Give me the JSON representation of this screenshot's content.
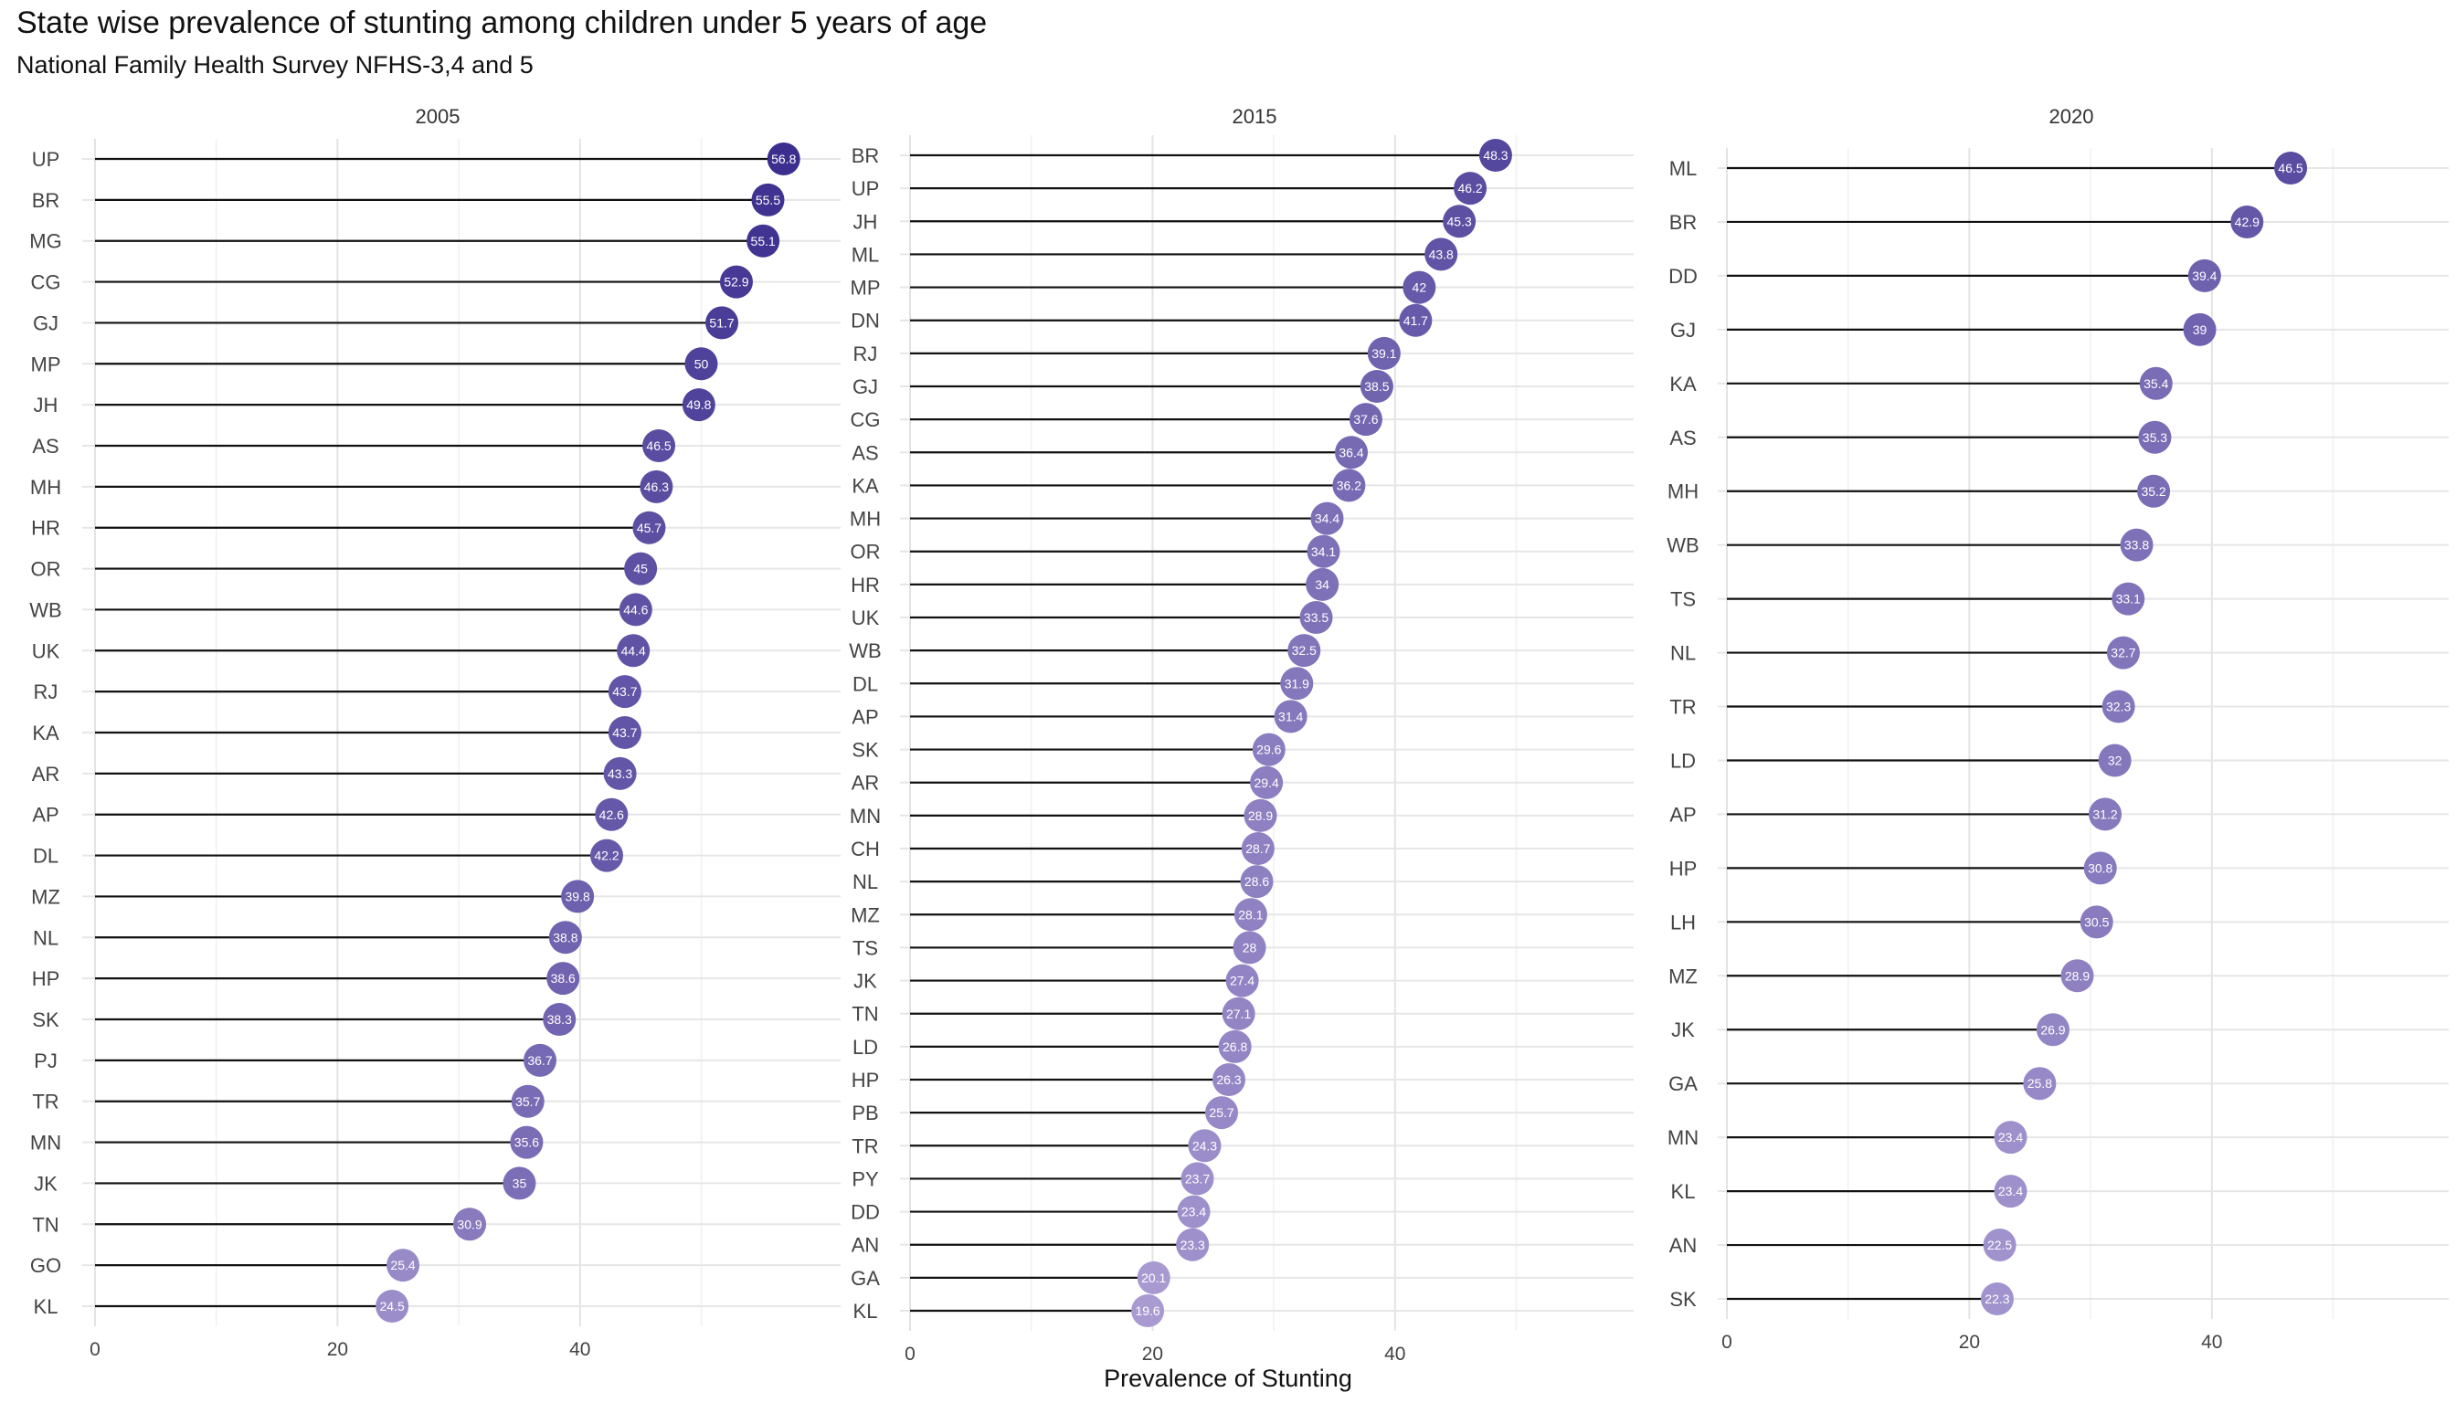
{
  "title": "State wise prevalence of stunting among children under 5 years of age",
  "subtitle": "National Family Health Survey NFHS-3,4 and 5",
  "chart_data": {
    "type": "lollipop",
    "xlabel": "Prevalence of Stunting",
    "ylabel": "",
    "xlim": [
      0,
      57
    ],
    "xticks": [
      0,
      20,
      40
    ],
    "grid": true,
    "color_low": "#a99bd2",
    "color_high": "#3b2e8e",
    "stem_color": "#111111",
    "panels": [
      {
        "facet": "2005",
        "categories": [
          "UP",
          "BR",
          "MG",
          "CG",
          "GJ",
          "MP",
          "JH",
          "AS",
          "MH",
          "HR",
          "OR",
          "WB",
          "UK",
          "RJ",
          "KA",
          "AR",
          "AP",
          "DL",
          "MZ",
          "NL",
          "HP",
          "SK",
          "PJ",
          "TR",
          "MN",
          "JK",
          "TN",
          "GO",
          "KL"
        ],
        "values": [
          56.8,
          55.5,
          55.1,
          52.9,
          51.7,
          50,
          49.8,
          46.5,
          46.3,
          45.7,
          45,
          44.6,
          44.4,
          43.7,
          43.7,
          43.3,
          42.6,
          42.2,
          39.8,
          38.8,
          38.6,
          38.3,
          36.7,
          35.7,
          35.6,
          35,
          30.9,
          25.4,
          24.5
        ],
        "labels": [
          "56.8",
          "55.5",
          "55.1",
          "52.9",
          "51.7",
          "50",
          "49.8",
          "46.5",
          "46.3",
          "45.7",
          "45",
          "44.6",
          "44.4",
          "43.7",
          "43.7",
          "43.3",
          "42.6",
          "42.2",
          "39.8",
          "38.8",
          "38.6",
          "38.3",
          "36.7",
          "35.7",
          "35.6",
          "35",
          "30.9",
          "25.4",
          "24.5"
        ]
      },
      {
        "facet": "2015",
        "categories": [
          "BR",
          "UP",
          "JH",
          "ML",
          "MP",
          "DN",
          "RJ",
          "GJ",
          "CG",
          "AS",
          "KA",
          "MH",
          "OR",
          "HR",
          "UK",
          "WB",
          "DL",
          "AP",
          "SK",
          "AR",
          "MN",
          "CH",
          "NL",
          "MZ",
          "TS",
          "JK",
          "TN",
          "LD",
          "HP",
          "PB",
          "TR",
          "PY",
          "DD",
          "AN",
          "GA",
          "KL"
        ],
        "values": [
          48.3,
          46.2,
          45.3,
          43.8,
          42,
          41.7,
          39.1,
          38.5,
          37.6,
          36.4,
          36.2,
          34.4,
          34.1,
          34,
          33.5,
          32.5,
          31.9,
          31.4,
          29.6,
          29.4,
          28.9,
          28.7,
          28.6,
          28.1,
          28,
          27.4,
          27.1,
          26.8,
          26.3,
          25.7,
          24.3,
          23.7,
          23.4,
          23.3,
          20.1,
          19.6
        ],
        "labels": [
          "48.3",
          "46.2",
          "45.3",
          "43.8",
          "42",
          "41.7",
          "39.1",
          "38.5",
          "37.6",
          "36.4",
          "36.2",
          "34.4",
          "34.1",
          "34",
          "33.5",
          "32.5",
          "31.9",
          "31.4",
          "29.6",
          "29.4",
          "28.9",
          "28.7",
          "28.6",
          "28.1",
          "28",
          "27.4",
          "27.1",
          "26.8",
          "26.3",
          "25.7",
          "24.3",
          "23.7",
          "23.4",
          "23.3",
          "20.1",
          "19.6"
        ]
      },
      {
        "facet": "2020",
        "categories": [
          "ML",
          "BR",
          "DD",
          "GJ",
          "KA",
          "AS",
          "MH",
          "WB",
          "TS",
          "NL",
          "TR",
          "LD",
          "AP",
          "HP",
          "LH",
          "MZ",
          "JK",
          "GA",
          "MN",
          "KL",
          "AN",
          "SK"
        ],
        "values": [
          46.5,
          42.9,
          39.4,
          39,
          35.4,
          35.3,
          35.2,
          33.8,
          33.1,
          32.7,
          32.3,
          32,
          31.2,
          30.8,
          30.5,
          28.9,
          26.9,
          25.8,
          23.4,
          23.4,
          22.5,
          22.3
        ],
        "labels": [
          "46.5",
          "42.9",
          "39.4",
          "39",
          "35.4",
          "35.3",
          "35.2",
          "33.8",
          "33.1",
          "32.7",
          "32.3",
          "32",
          "31.2",
          "30.8",
          "30.5",
          "28.9",
          "26.9",
          "25.8",
          "23.4",
          "23.4",
          "22.5",
          "22.3"
        ]
      }
    ]
  }
}
